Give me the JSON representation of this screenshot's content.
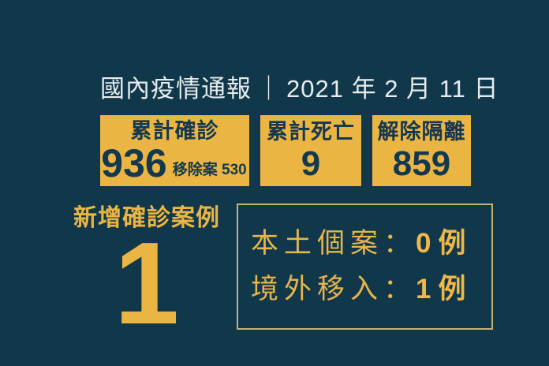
{
  "palette": {
    "background": "#10374A",
    "accent_gold": "#EAB542",
    "card_text_dark": "#14384F",
    "title_text": "#E7EDEE",
    "breakdown_border": "#C3B273"
  },
  "header": {
    "report_title": "國內疫情通報",
    "separator": "｜",
    "date": "2021 年 2 月 11 日"
  },
  "stats": {
    "cards": [
      {
        "label": "累計確診",
        "value": "936",
        "note": "移除案 530"
      },
      {
        "label": "累計死亡",
        "value": "9"
      },
      {
        "label": "解除隔離",
        "value": "859"
      }
    ]
  },
  "new_cases": {
    "label": "新增確診案例",
    "value": "1"
  },
  "breakdown": {
    "rows": [
      {
        "label": "本土個案",
        "colon": "：",
        "value": "0",
        "unit": "例"
      },
      {
        "label": "境外移入",
        "colon": "：",
        "value": "1",
        "unit": "例"
      }
    ]
  },
  "chart_data": {
    "type": "table",
    "title": "國內疫情通報 2021 年 2 月 11 日",
    "categories": [
      "累計確診",
      "移除案",
      "累計死亡",
      "解除隔離",
      "新增確診案例",
      "本土個案",
      "境外移入"
    ],
    "values": [
      936,
      530,
      9,
      859,
      1,
      0,
      1
    ],
    "notes": "COVID-19 daily report infographic; stat cards, no axes"
  }
}
